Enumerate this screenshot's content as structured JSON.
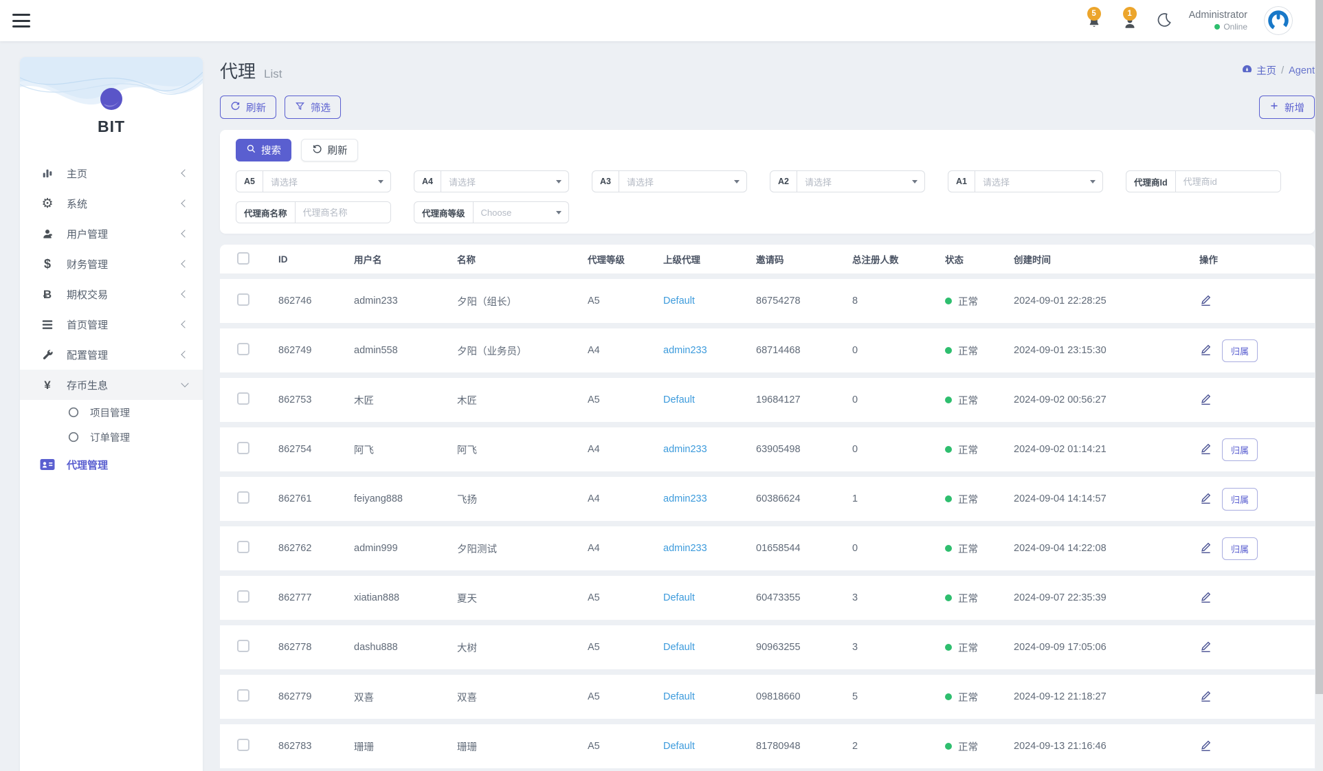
{
  "navbar": {
    "bell_badge": "5",
    "user_badge": "1",
    "user_name": "Administrator",
    "user_status": "Online"
  },
  "sidebar": {
    "logo_text": "BIT",
    "items": [
      {
        "label": "主页",
        "icon": "bar-chart",
        "chevron": "left"
      },
      {
        "label": "系统",
        "icon": "gear",
        "chevron": "left"
      },
      {
        "label": "用户管理",
        "icon": "user",
        "chevron": "left"
      },
      {
        "label": "财务管理",
        "icon": "dollar",
        "chevron": "left"
      },
      {
        "label": "期权交易",
        "icon": "bitcoin",
        "chevron": "left"
      },
      {
        "label": "首页管理",
        "icon": "list",
        "chevron": "left"
      },
      {
        "label": "配置管理",
        "icon": "wrench",
        "chevron": "left"
      },
      {
        "label": "存币生息",
        "icon": "yen",
        "chevron": "down",
        "active": true
      },
      {
        "label": "项目管理",
        "icon": "circle",
        "sub": true
      },
      {
        "label": "订单管理",
        "icon": "circle",
        "sub": true
      },
      {
        "label": "代理管理",
        "icon": "id-card",
        "highlight": true
      }
    ]
  },
  "page": {
    "title": "代理",
    "subtitle": "List",
    "breadcrumb_home": "主页",
    "breadcrumb_sep": "/",
    "breadcrumb_current": "Agent"
  },
  "toolbar": {
    "refresh_label": "刷新",
    "filter_label": "筛选",
    "add_label": "新增"
  },
  "filters": {
    "search_label": "搜索",
    "reset_label": "刷新",
    "selects": [
      {
        "label": "A5",
        "placeholder": "请选择"
      },
      {
        "label": "A4",
        "placeholder": "请选择"
      },
      {
        "label": "A3",
        "placeholder": "请选择"
      },
      {
        "label": "A2",
        "placeholder": "请选择"
      },
      {
        "label": "A1",
        "placeholder": "请选择"
      }
    ],
    "agent_id": {
      "label": "代理商Id",
      "placeholder": "代理商id"
    },
    "agent_name": {
      "label": "代理商名称",
      "placeholder": "代理商名称"
    },
    "agent_level": {
      "label": "代理商等级",
      "placeholder": "Choose"
    }
  },
  "table": {
    "headers": [
      "ID",
      "用户名",
      "名称",
      "代理等级",
      "上级代理",
      "邀请码",
      "总注册人数",
      "状态",
      "创建时间",
      "操作"
    ],
    "assign_label": "归属",
    "rows": [
      {
        "id": "862746",
        "username": "admin233",
        "name": "夕阳（组长）",
        "level": "A5",
        "parent": "Default",
        "invite": "86754278",
        "total": "8",
        "status": "正常",
        "created": "2024-09-01 22:28:25",
        "assign": false
      },
      {
        "id": "862749",
        "username": "admin558",
        "name": "夕阳（业务员）",
        "level": "A4",
        "parent": "admin233",
        "invite": "68714468",
        "total": "0",
        "status": "正常",
        "created": "2024-09-01 23:15:30",
        "assign": true
      },
      {
        "id": "862753",
        "username": "木匠",
        "name": "木匠",
        "level": "A5",
        "parent": "Default",
        "invite": "19684127",
        "total": "0",
        "status": "正常",
        "created": "2024-09-02 00:56:27",
        "assign": false
      },
      {
        "id": "862754",
        "username": "阿飞",
        "name": "阿飞",
        "level": "A4",
        "parent": "admin233",
        "invite": "63905498",
        "total": "0",
        "status": "正常",
        "created": "2024-09-02 01:14:21",
        "assign": true
      },
      {
        "id": "862761",
        "username": "feiyang888",
        "name": "飞扬",
        "level": "A4",
        "parent": "admin233",
        "invite": "60386624",
        "total": "1",
        "status": "正常",
        "created": "2024-09-04 14:14:57",
        "assign": true
      },
      {
        "id": "862762",
        "username": "admin999",
        "name": "夕阳测试",
        "level": "A4",
        "parent": "admin233",
        "invite": "01658544",
        "total": "0",
        "status": "正常",
        "created": "2024-09-04 14:22:08",
        "assign": true
      },
      {
        "id": "862777",
        "username": "xiatian888",
        "name": "夏天",
        "level": "A5",
        "parent": "Default",
        "invite": "60473355",
        "total": "3",
        "status": "正常",
        "created": "2024-09-07 22:35:39",
        "assign": false
      },
      {
        "id": "862778",
        "username": "dashu888",
        "name": "大树",
        "level": "A5",
        "parent": "Default",
        "invite": "90963255",
        "total": "3",
        "status": "正常",
        "created": "2024-09-09 17:05:06",
        "assign": false
      },
      {
        "id": "862779",
        "username": "双喜",
        "name": "双喜",
        "level": "A5",
        "parent": "Default",
        "invite": "09818660",
        "total": "5",
        "status": "正常",
        "created": "2024-09-12 21:18:27",
        "assign": false
      },
      {
        "id": "862783",
        "username": "珊珊",
        "name": "珊珊",
        "level": "A5",
        "parent": "Default",
        "invite": "81780948",
        "total": "2",
        "status": "正常",
        "created": "2024-09-13 21:16:46",
        "assign": false
      }
    ]
  },
  "colors": {
    "primary": "#5a5fd0",
    "link": "#3d9bdc",
    "success": "#2ebe6e",
    "badge_orange": "#eca52b"
  }
}
